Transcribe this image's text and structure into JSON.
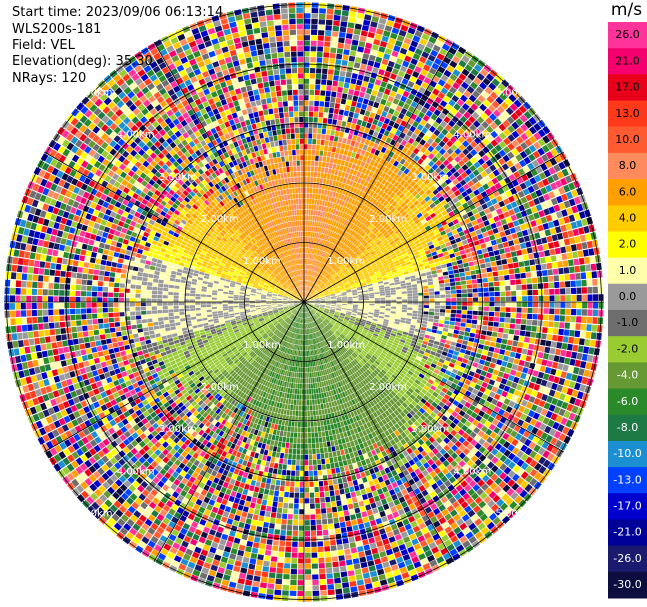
{
  "header": {
    "start_time": "Start time: 2023/09/06 06:13:14",
    "instrument": "WLS200s-181",
    "field": "Field: VEL",
    "elevation": "Elevation(deg): 35.30",
    "nrays": "NRays: 120"
  },
  "chart_data": {
    "type": "heatmap",
    "subtype": "polar-ppi",
    "field": "VEL",
    "unit": "m/s",
    "range_ring_labels": [
      "1.00km",
      "2.00km",
      "3.00km",
      "4.00km",
      "5.00km"
    ],
    "colorbar": {
      "ticks": [
        "26.0",
        "21.0",
        "17.0",
        "13.0",
        "10.0",
        "8.0",
        "6.0",
        "4.0",
        "2.0",
        "1.0",
        "0.0",
        "-1.0",
        "-2.0",
        "-4.0",
        "-6.0",
        "-8.0",
        "-10.0",
        "-13.0",
        "-17.0",
        "-21.0",
        "-26.0",
        "-30.0"
      ],
      "colors": [
        "#ff3399",
        "#f5006e",
        "#e8001b",
        "#ff3a1a",
        "#ff5a30",
        "#ff8a5c",
        "#ffa000",
        "#ffcc00",
        "#ffff00",
        "#ffffaa",
        "#9a9a9a",
        "#6e6e6e",
        "#99cc33",
        "#669933",
        "#2a8a2a",
        "#1e7a45",
        "#1b8fd1",
        "#0040ff",
        "#0000cc",
        "#000099",
        "#1a1a6e",
        "#0d0d40"
      ]
    },
    "nrays": 120,
    "elevation_deg": 35.3
  }
}
